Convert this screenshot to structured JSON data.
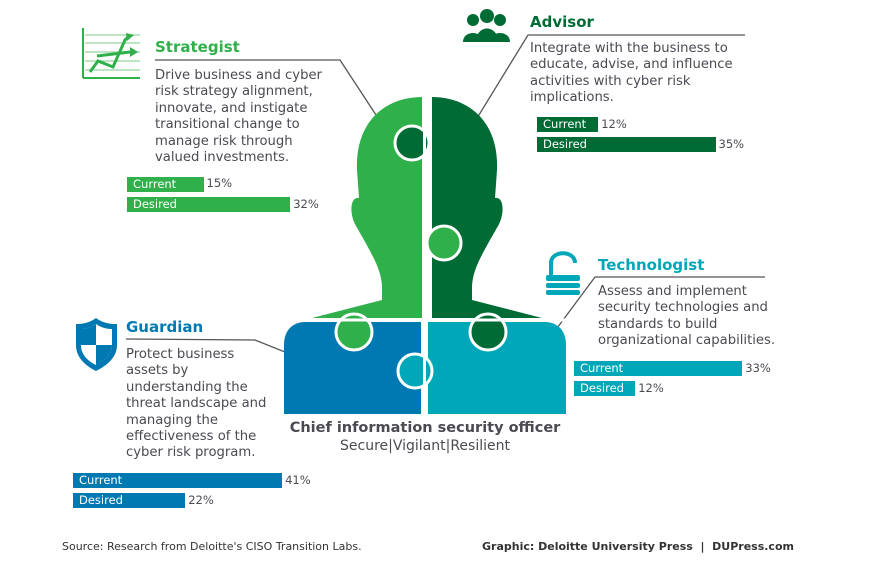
{
  "colors": {
    "strategist": "#2fb04a",
    "advisor": "#006b35",
    "guardian": "#0079b3",
    "technologist": "#00a7b9"
  },
  "roles": {
    "strategist": {
      "title": "Strategist",
      "icon": "chart-trend-icon",
      "description": "Drive business and cyber\nrisk strategy alignment,\ninnovate, and instigate\ntransitional change to\nmanage risk through\nvalued investments.",
      "current_label": "Current",
      "current": 15,
      "current_text": "15%",
      "desired_label": "Desired",
      "desired": 32,
      "desired_text": "32%"
    },
    "advisor": {
      "title": "Advisor",
      "icon": "people-icon",
      "description": "Integrate with the business to\neducate, advise, and influence\nactivities with cyber risk\nimplications.",
      "current_label": "Current",
      "current": 12,
      "current_text": "12%",
      "desired_label": "Desired",
      "desired": 35,
      "desired_text": "35%"
    },
    "technologist": {
      "title": "Technologist",
      "icon": "padlock-icon",
      "description": "Assess and implement\nsecurity technologies and\nstandards to build\norganizational capabilities.",
      "current_label": "Current",
      "current": 33,
      "current_text": "33%",
      "desired_label": "Desired",
      "desired": 12,
      "desired_text": "12%"
    },
    "guardian": {
      "title": "Guardian",
      "icon": "shield-icon",
      "description": "Protect business\nassets by\nunderstanding the\nthreat landscape and\nmanaging the\neffectiveness of the\ncyber risk program.",
      "current_label": "Current",
      "current": 41,
      "current_text": "41%",
      "desired_label": "Desired",
      "desired": 22,
      "desired_text": "22%"
    }
  },
  "center": {
    "title": "Chief information security officer",
    "subtitle": "Secure|Vigilant|Resilient"
  },
  "footer": {
    "source": "Source: Research from Deloitte's CISO Transition Labs.",
    "credit": "Graphic: Deloitte University Press  |  DUPress.com"
  }
}
